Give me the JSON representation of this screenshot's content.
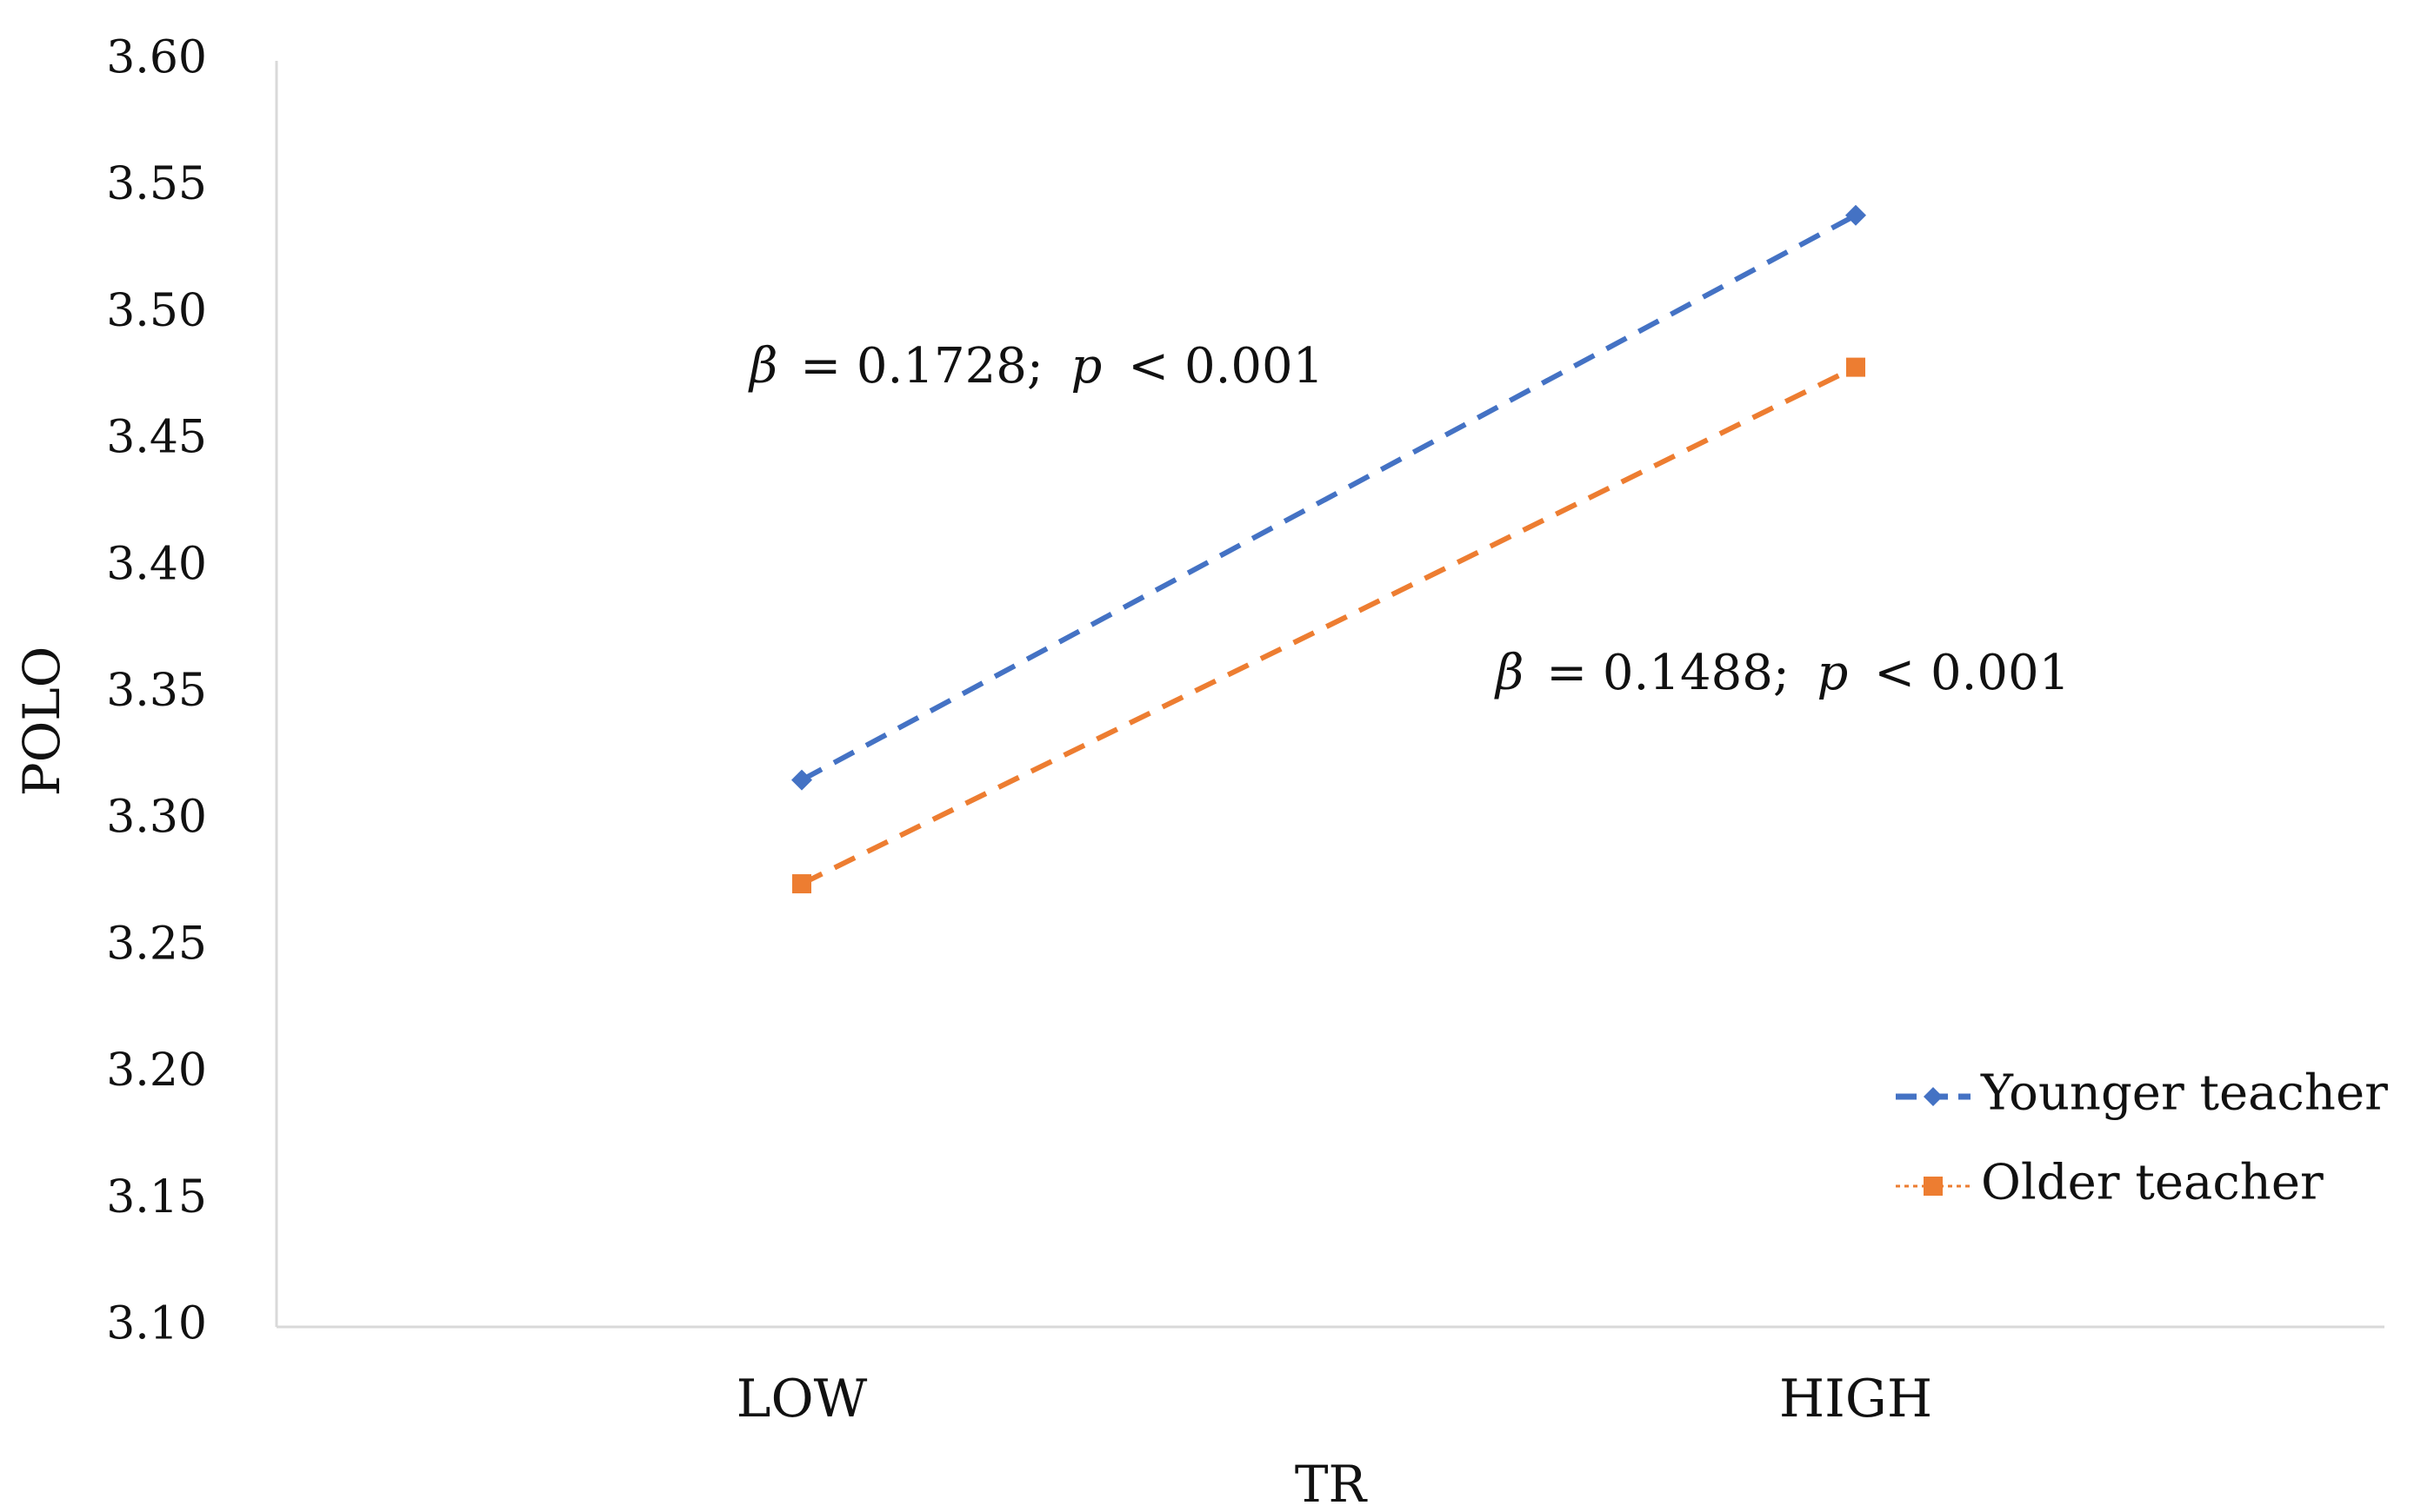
{
  "chart_data": {
    "type": "line",
    "categories": [
      "LOW",
      "HIGH"
    ],
    "series": [
      {
        "name": "Younger teacher",
        "values": [
          3.316,
          3.539
        ],
        "color": "#4472C4",
        "line_style": "dashed",
        "marker": "diamond"
      },
      {
        "name": "Older teacher",
        "values": [
          3.275,
          3.479
        ],
        "color": "#ED7D31",
        "line_style": "dashed",
        "marker": "square"
      }
    ],
    "xlabel": "TR",
    "ylabel": "POLO",
    "ylim": [
      3.1,
      3.6
    ],
    "y_ticks": [
      "3.10",
      "3.15",
      "3.20",
      "3.25",
      "3.30",
      "3.35",
      "3.40",
      "3.45",
      "3.50",
      "3.55",
      "3.60"
    ],
    "grid": false,
    "legend_position": "bottom-right",
    "annotations": [
      {
        "beta_symbol": "β",
        "beta_value": "= 0.1728;",
        "p_symbol": "p",
        "p_value": "< 0.001"
      },
      {
        "beta_symbol": "β",
        "beta_value": "= 0.1488;",
        "p_symbol": "p",
        "p_value": "< 0.001"
      }
    ]
  }
}
